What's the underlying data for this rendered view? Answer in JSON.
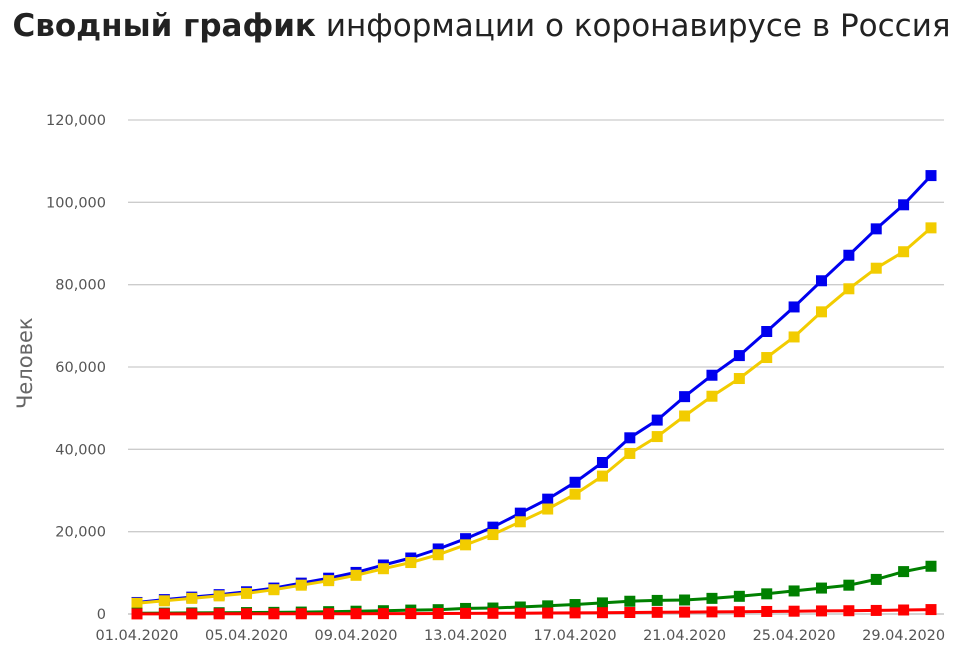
{
  "chart_data": {
    "type": "line",
    "title_bold": "Сводный график",
    "title_rest": " информации о коронавирусе в Россия",
    "ylabel": "Человек",
    "xlabel": "",
    "ylim": [
      0,
      120000
    ],
    "yticks": [
      "120,000",
      "100,000",
      "80,000",
      "60,000",
      "40,000",
      "20,000",
      "0"
    ],
    "ytick_values": [
      120000,
      100000,
      80000,
      60000,
      40000,
      20000,
      0
    ],
    "x_tick_labels": [
      "01.04.2020",
      "05.04.2020",
      "09.04.2020",
      "13.04.2020",
      "17.04.2020",
      "21.04.2020",
      "25.04.2020",
      "29.04.2020"
    ],
    "x_tick_indices": [
      0,
      4,
      8,
      12,
      16,
      20,
      24,
      28
    ],
    "x": [
      "01.04.2020",
      "02.04.2020",
      "03.04.2020",
      "04.04.2020",
      "05.04.2020",
      "06.04.2020",
      "07.04.2020",
      "08.04.2020",
      "09.04.2020",
      "10.04.2020",
      "11.04.2020",
      "12.04.2020",
      "13.04.2020",
      "14.04.2020",
      "15.04.2020",
      "16.04.2020",
      "17.04.2020",
      "18.04.2020",
      "19.04.2020",
      "20.04.2020",
      "21.04.2020",
      "22.04.2020",
      "23.04.2020",
      "24.04.2020",
      "25.04.2020",
      "26.04.2020",
      "27.04.2020",
      "28.04.2020",
      "29.04.2020",
      "30.04.2020"
    ],
    "grid": true,
    "legend": "none",
    "series": [
      {
        "color": "#0000ee",
        "values": [
          2800,
          3500,
          4100,
          4700,
          5400,
          6300,
          7500,
          8700,
          10100,
          11900,
          13600,
          15800,
          18300,
          21100,
          24500,
          27900,
          32000,
          36800,
          42800,
          47100,
          52800,
          57999,
          62773,
          68622,
          74588,
          80949,
          87147,
          93558,
          99399,
          106498
        ]
      },
      {
        "color": "#f2cc00",
        "values": [
          2600,
          3200,
          3800,
          4400,
          5000,
          5900,
          7000,
          8100,
          9400,
          11000,
          12500,
          14400,
          16800,
          19300,
          22400,
          25500,
          29100,
          33500,
          39000,
          43100,
          48100,
          52900,
          57200,
          62300,
          67300,
          73400,
          79000,
          84000,
          88000,
          93800
        ]
      },
      {
        "color": "#008000",
        "values": [
          200,
          220,
          260,
          310,
          350,
          400,
          470,
          570,
          680,
          800,
          950,
          1050,
          1350,
          1450,
          1700,
          1980,
          2300,
          2700,
          3100,
          3300,
          3400,
          3800,
          4300,
          4900,
          5600,
          6300,
          7000,
          8400,
          10300,
          11600
        ]
      },
      {
        "color": "#ff0000",
        "values": [
          24,
          30,
          34,
          43,
          47,
          54,
          59,
          63,
          80,
          94,
          106,
          130,
          148,
          170,
          198,
          232,
          273,
          313,
          361,
          405,
          456,
          513,
          555,
          615,
          681,
          747,
          794,
          867,
          972,
          1073
        ]
      }
    ]
  }
}
